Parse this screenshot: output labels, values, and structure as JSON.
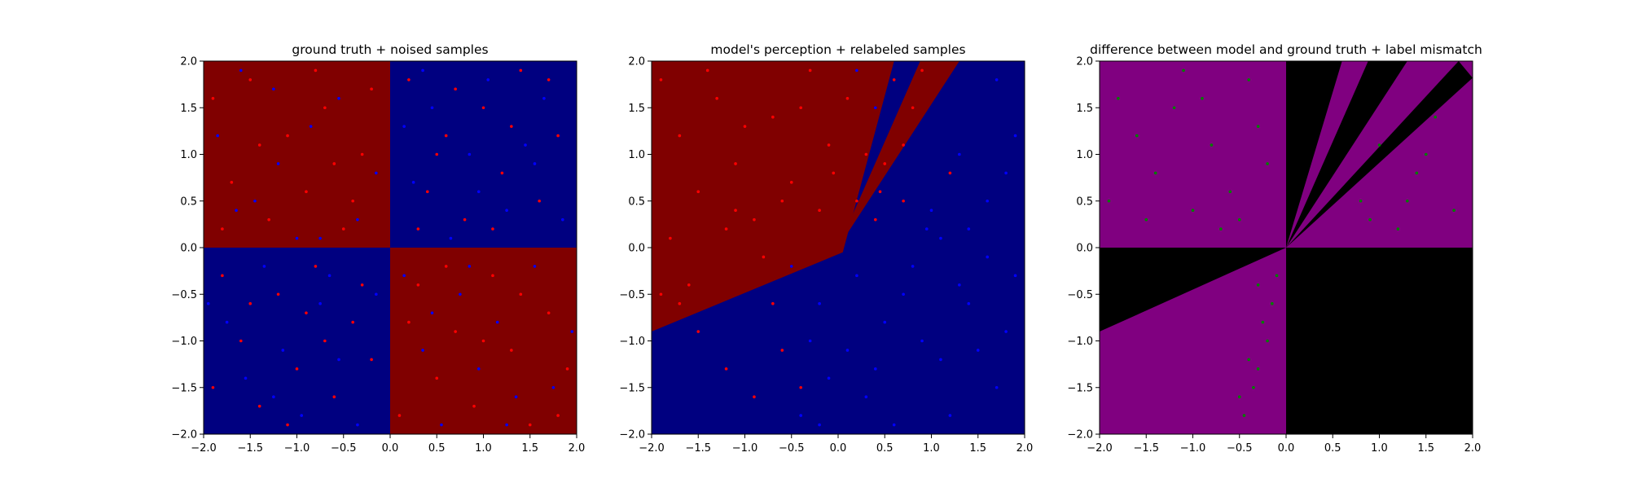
{
  "chart_data": [
    {
      "type": "scatter",
      "title": "ground truth + noised samples",
      "xlim": [
        -2.0,
        2.0
      ],
      "ylim": [
        -2.0,
        2.0
      ],
      "xticks": [
        "−2.0",
        "−1.5",
        "−1.0",
        "−0.5",
        "0.0",
        "0.5",
        "1.0",
        "1.5",
        "2.0"
      ],
      "yticks": [
        "−2.0",
        "−1.5",
        "−1.0",
        "−0.5",
        "0.0",
        "0.5",
        "1.0",
        "1.5",
        "2.0"
      ],
      "background": "xor_quadrants",
      "colors": {
        "positive_region": "#800000",
        "negative_region": "#000080",
        "positive_point": "#ff0000",
        "negative_point": "#0000ff"
      },
      "series": [
        {
          "points": [
            [
              -1.9,
              1.6
            ],
            [
              -1.7,
              0.7
            ],
            [
              -1.5,
              1.8
            ],
            [
              -1.3,
              0.3
            ],
            [
              -1.1,
              1.2
            ],
            [
              -0.9,
              0.6
            ],
            [
              -0.7,
              1.5
            ],
            [
              -0.5,
              0.2
            ],
            [
              -0.3,
              1.0
            ],
            [
              -0.2,
              1.7
            ],
            [
              -1.8,
              0.2
            ],
            [
              -1.4,
              1.1
            ],
            [
              -0.8,
              1.9
            ],
            [
              -0.6,
              0.9
            ],
            [
              -0.4,
              0.5
            ],
            [
              0.2,
              1.8
            ],
            [
              0.4,
              0.6
            ],
            [
              0.6,
              1.2
            ],
            [
              0.8,
              0.3
            ],
            [
              1.0,
              1.5
            ],
            [
              1.2,
              0.8
            ],
            [
              1.4,
              1.9
            ],
            [
              1.6,
              0.5
            ],
            [
              1.8,
              1.2
            ],
            [
              0.3,
              0.2
            ],
            [
              0.7,
              1.7
            ],
            [
              1.1,
              0.2
            ],
            [
              1.3,
              1.3
            ],
            [
              1.7,
              1.8
            ],
            [
              0.5,
              1.0
            ],
            [
              -1.8,
              -0.3
            ],
            [
              -1.6,
              -1.0
            ],
            [
              -1.4,
              -1.7
            ],
            [
              -1.2,
              -0.5
            ],
            [
              -1.0,
              -1.3
            ],
            [
              -0.8,
              -0.2
            ],
            [
              -0.6,
              -1.6
            ],
            [
              -0.4,
              -0.8
            ],
            [
              -0.2,
              -1.2
            ],
            [
              -1.9,
              -1.5
            ],
            [
              -1.5,
              -0.6
            ],
            [
              -1.1,
              -1.9
            ],
            [
              -0.7,
              -1.0
            ],
            [
              -0.3,
              -0.4
            ],
            [
              -0.9,
              -0.7
            ],
            [
              0.1,
              -1.8
            ],
            [
              0.3,
              -0.4
            ],
            [
              0.5,
              -1.4
            ],
            [
              0.7,
              -0.9
            ],
            [
              0.9,
              -1.7
            ],
            [
              1.1,
              -0.3
            ],
            [
              1.3,
              -1.1
            ],
            [
              1.5,
              -1.9
            ],
            [
              1.7,
              -0.7
            ],
            [
              1.9,
              -1.3
            ],
            [
              0.2,
              -0.8
            ],
            [
              0.6,
              -0.2
            ],
            [
              1.0,
              -1.0
            ],
            [
              1.4,
              -0.5
            ],
            [
              1.8,
              -1.8
            ]
          ]
        },
        {
          "points": [
            [
              -1.85,
              1.2
            ],
            [
              -1.6,
              1.9
            ],
            [
              -1.45,
              0.5
            ],
            [
              -1.2,
              0.9
            ],
            [
              -1.0,
              0.1
            ],
            [
              -0.85,
              1.3
            ],
            [
              -0.55,
              1.6
            ],
            [
              -0.35,
              0.3
            ],
            [
              -0.15,
              0.8
            ],
            [
              -1.25,
              1.7
            ],
            [
              -0.75,
              0.1
            ],
            [
              -1.65,
              0.4
            ],
            [
              0.25,
              0.7
            ],
            [
              0.45,
              1.5
            ],
            [
              0.65,
              0.1
            ],
            [
              0.85,
              1.0
            ],
            [
              1.05,
              1.8
            ],
            [
              1.25,
              0.4
            ],
            [
              1.45,
              1.1
            ],
            [
              1.65,
              1.6
            ],
            [
              1.85,
              0.3
            ],
            [
              0.15,
              1.3
            ],
            [
              0.95,
              0.6
            ],
            [
              1.55,
              0.9
            ],
            [
              0.35,
              1.9
            ],
            [
              -1.75,
              -0.8
            ],
            [
              -1.55,
              -1.4
            ],
            [
              -1.35,
              -0.2
            ],
            [
              -1.15,
              -1.1
            ],
            [
              -0.95,
              -1.8
            ],
            [
              -0.75,
              -0.6
            ],
            [
              -0.55,
              -1.2
            ],
            [
              -0.35,
              -1.9
            ],
            [
              -0.15,
              -0.5
            ],
            [
              -1.95,
              -0.6
            ],
            [
              -1.25,
              -1.6
            ],
            [
              -0.65,
              -0.3
            ],
            [
              0.15,
              -0.3
            ],
            [
              0.35,
              -1.1
            ],
            [
              0.55,
              -1.9
            ],
            [
              0.75,
              -0.5
            ],
            [
              0.95,
              -1.3
            ],
            [
              1.15,
              -0.8
            ],
            [
              1.35,
              -1.6
            ],
            [
              1.55,
              -0.2
            ],
            [
              1.75,
              -1.5
            ],
            [
              1.95,
              -0.9
            ],
            [
              0.45,
              -0.7
            ],
            [
              1.25,
              -1.9
            ],
            [
              0.85,
              -0.2
            ]
          ]
        }
      ]
    },
    {
      "type": "scatter",
      "title": "model's perception + relabeled samples",
      "xlim": [
        -2.0,
        2.0
      ],
      "ylim": [
        -2.0,
        2.0
      ],
      "xticks": [
        "−2.0",
        "−1.5",
        "−1.0",
        "−0.5",
        "0.0",
        "0.5",
        "1.0",
        "1.5",
        "2.0"
      ],
      "yticks": [
        "−2.0",
        "−1.5",
        "−1.0",
        "−0.5",
        "0.0",
        "0.5",
        "1.0",
        "1.5",
        "2.0"
      ],
      "background": "model_wedges",
      "colors": {
        "positive_region": "#800000",
        "negative_region": "#000080",
        "positive_point": "#ff0000",
        "negative_point": "#0000ff"
      },
      "series": [
        {
          "points": [
            [
              -1.9,
              1.8
            ],
            [
              -1.7,
              1.2
            ],
            [
              -1.5,
              0.6
            ],
            [
              -1.3,
              1.6
            ],
            [
              -1.1,
              0.9
            ],
            [
              -0.9,
              0.3
            ],
            [
              -0.7,
              1.4
            ],
            [
              -0.5,
              0.7
            ],
            [
              -0.3,
              1.9
            ],
            [
              -0.1,
              1.1
            ],
            [
              -1.8,
              0.1
            ],
            [
              -1.6,
              -0.4
            ],
            [
              -1.4,
              1.9
            ],
            [
              -1.2,
              0.2
            ],
            [
              -1.0,
              1.3
            ],
            [
              -0.8,
              -0.1
            ],
            [
              -0.6,
              0.5
            ],
            [
              -0.4,
              1.5
            ],
            [
              -0.2,
              0.4
            ],
            [
              -1.9,
              -0.5
            ],
            [
              -1.5,
              -0.9
            ],
            [
              -1.2,
              -1.3
            ],
            [
              -0.9,
              -1.6
            ],
            [
              -0.6,
              -1.1
            ],
            [
              -0.4,
              -1.5
            ],
            [
              -0.7,
              -0.6
            ],
            [
              -1.7,
              -0.6
            ],
            [
              0.1,
              1.6
            ],
            [
              0.3,
              1.0
            ],
            [
              0.5,
              0.9
            ],
            [
              0.6,
              1.8
            ],
            [
              0.7,
              0.5
            ],
            [
              0.8,
              1.5
            ],
            [
              0.4,
              0.3
            ],
            [
              0.9,
              1.9
            ],
            [
              1.2,
              0.8
            ],
            [
              0.2,
              0.5
            ],
            [
              0.7,
              1.1
            ],
            [
              -0.05,
              0.8
            ],
            [
              -1.1,
              0.4
            ],
            [
              0.45,
              0.6
            ]
          ]
        },
        {
          "points": [
            [
              0.2,
              -0.3
            ],
            [
              0.5,
              -0.8
            ],
            [
              0.8,
              -0.2
            ],
            [
              1.1,
              -1.2
            ],
            [
              1.4,
              -0.6
            ],
            [
              1.7,
              -1.5
            ],
            [
              1.9,
              -0.3
            ],
            [
              0.3,
              -1.6
            ],
            [
              0.6,
              -1.9
            ],
            [
              0.9,
              -1.0
            ],
            [
              1.2,
              -1.8
            ],
            [
              1.5,
              -1.1
            ],
            [
              1.8,
              -0.9
            ],
            [
              0.1,
              -1.1
            ],
            [
              1.0,
              0.4
            ],
            [
              1.3,
              1.0
            ],
            [
              1.6,
              0.5
            ],
            [
              1.9,
              1.2
            ],
            [
              1.7,
              1.8
            ],
            [
              1.4,
              0.2
            ],
            [
              1.1,
              0.1
            ],
            [
              1.8,
              0.8
            ],
            [
              0.4,
              1.5
            ],
            [
              0.2,
              1.9
            ],
            [
              -0.2,
              -0.6
            ],
            [
              -0.5,
              -0.2
            ],
            [
              -0.3,
              -1.0
            ],
            [
              -0.1,
              -1.4
            ],
            [
              -0.4,
              -1.8
            ],
            [
              -0.2,
              -1.9
            ],
            [
              0.7,
              -0.5
            ],
            [
              1.3,
              -0.4
            ],
            [
              0.4,
              -1.3
            ],
            [
              1.6,
              -0.1
            ],
            [
              0.95,
              0.2
            ]
          ]
        }
      ]
    },
    {
      "type": "scatter",
      "title": "difference between model and ground truth + label mismatch",
      "xlim": [
        -2.0,
        2.0
      ],
      "ylim": [
        -2.0,
        2.0
      ],
      "xticks": [
        "−2.0",
        "−1.5",
        "−1.0",
        "−0.5",
        "0.0",
        "0.5",
        "1.0",
        "1.5",
        "2.0"
      ],
      "yticks": [
        "−2.0",
        "−1.5",
        "−1.0",
        "−0.5",
        "0.0",
        "0.5",
        "1.0",
        "1.5",
        "2.0"
      ],
      "background": "mismatch_regions",
      "colors": {
        "match_region": "#800080",
        "mismatch_region": "#000000",
        "mismatch_point": "#008000"
      },
      "series": [
        {
          "points": [
            [
              -1.8,
              1.6
            ],
            [
              -1.6,
              1.2
            ],
            [
              -1.4,
              0.8
            ],
            [
              -1.2,
              1.5
            ],
            [
              -1.0,
              0.4
            ],
            [
              -0.8,
              1.1
            ],
            [
              -0.6,
              0.6
            ],
            [
              -0.4,
              1.8
            ],
            [
              -0.2,
              0.9
            ],
            [
              -1.5,
              0.3
            ],
            [
              -1.1,
              1.9
            ],
            [
              -0.7,
              0.2
            ],
            [
              -0.3,
              1.3
            ],
            [
              -1.9,
              0.5
            ],
            [
              -0.9,
              1.6
            ],
            [
              -0.5,
              0.3
            ],
            [
              0.8,
              0.5
            ],
            [
              1.0,
              1.1
            ],
            [
              1.2,
              0.2
            ],
            [
              1.4,
              0.8
            ],
            [
              1.6,
              1.4
            ],
            [
              1.8,
              0.4
            ],
            [
              1.3,
              0.5
            ],
            [
              0.9,
              0.3
            ],
            [
              1.5,
              1.0
            ],
            [
              -0.3,
              -0.4
            ],
            [
              -0.25,
              -0.8
            ],
            [
              -0.4,
              -1.2
            ],
            [
              -0.35,
              -1.5
            ],
            [
              -0.45,
              -1.8
            ],
            [
              -0.2,
              -1.0
            ],
            [
              -0.15,
              -0.6
            ],
            [
              -0.3,
              -1.3
            ],
            [
              -0.5,
              -1.6
            ],
            [
              -0.1,
              -0.3
            ]
          ]
        }
      ]
    }
  ]
}
